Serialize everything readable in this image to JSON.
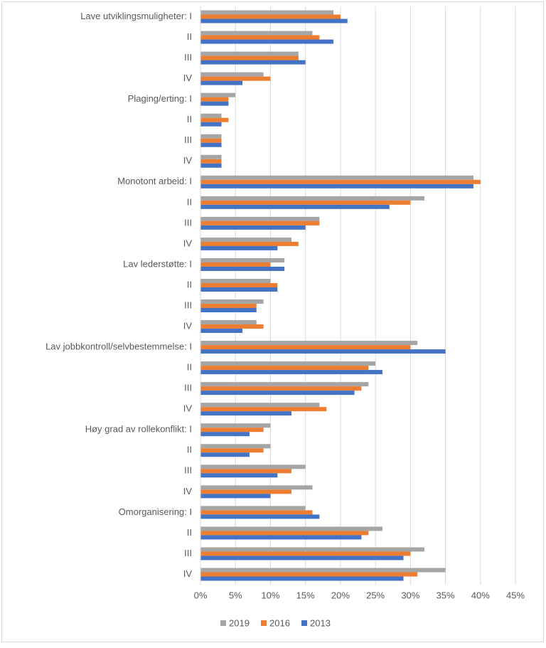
{
  "chart_data": {
    "type": "bar",
    "orientation": "horizontal",
    "categories": [
      "Lave utviklingsmuligheter: I",
      "II",
      "III",
      "IV",
      "Plaging/erting: I",
      "II",
      "III",
      "IV",
      "Monotont arbeid: I",
      "II",
      "III",
      "IV",
      "Lav lederstøtte: I",
      "II",
      "III",
      "IV",
      "Lav jobbkontroll/selvbestemmelse: I",
      "II",
      "III",
      "IV",
      "Høy grad av rollekonflikt: I",
      "II",
      "III",
      "IV",
      "Omorganisering: I",
      "II",
      "III",
      "IV"
    ],
    "series": [
      {
        "name": "2019",
        "color": "#a5a5a5",
        "values": [
          19,
          16,
          14,
          9,
          5,
          3,
          3,
          3,
          39,
          32,
          17,
          13,
          12,
          10,
          9,
          8,
          31,
          25,
          24,
          17,
          10,
          10,
          15,
          16,
          15,
          26,
          32,
          35
        ]
      },
      {
        "name": "2016",
        "color": "#ed7d31",
        "values": [
          20,
          17,
          14,
          10,
          4,
          4,
          3,
          3,
          40,
          30,
          17,
          14,
          10,
          11,
          8,
          9,
          30,
          24,
          23,
          18,
          9,
          9,
          13,
          13,
          16,
          24,
          30,
          31
        ]
      },
      {
        "name": "2013",
        "color": "#4472c4",
        "values": [
          21,
          19,
          15,
          6,
          4,
          3,
          3,
          3,
          39,
          27,
          15,
          11,
          12,
          11,
          8,
          6,
          35,
          26,
          22,
          13,
          7,
          7,
          11,
          10,
          17,
          23,
          29,
          29
        ]
      }
    ],
    "xlim": [
      0,
      45
    ],
    "xticks": [
      {
        "value": 0,
        "label": "0%"
      },
      {
        "value": 5,
        "label": "5%"
      },
      {
        "value": 10,
        "label": "10%"
      },
      {
        "value": 15,
        "label": "15%"
      },
      {
        "value": 20,
        "label": "20%"
      },
      {
        "value": 25,
        "label": "25%"
      },
      {
        "value": 30,
        "label": "30%"
      },
      {
        "value": 35,
        "label": "35%"
      },
      {
        "value": 40,
        "label": "40%"
      },
      {
        "value": 45,
        "label": "45%"
      }
    ],
    "grid": true,
    "legend": "bottom"
  }
}
